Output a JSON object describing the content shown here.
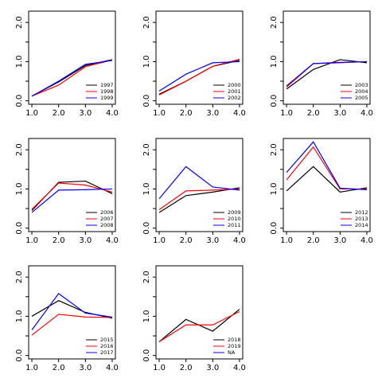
{
  "chart_data": [
    {
      "type": "line",
      "x": [
        1,
        2,
        3,
        4
      ],
      "xlim": [
        0.88,
        4.12
      ],
      "xticks": [
        {
          "value": 1,
          "label": "1.0"
        },
        {
          "value": 2,
          "label": "2.0"
        },
        {
          "value": 3,
          "label": "3.0"
        },
        {
          "value": 4,
          "label": "4.0"
        }
      ],
      "ylim": [
        -0.088,
        2.288
      ],
      "yticks": [
        {
          "value": 0,
          "label": "0.0"
        },
        0.5,
        {
          "value": 1,
          "label": "1.0"
        },
        1.5,
        {
          "value": 2,
          "label": "2.0"
        }
      ],
      "legend": "bottomright",
      "series": [
        {
          "name": "1997",
          "color": "#000000",
          "values": [
            0.12,
            0.48,
            0.9,
            1.05
          ]
        },
        {
          "name": "1998",
          "color": "#ff0000",
          "values": [
            0.12,
            0.4,
            0.87,
            1.04
          ]
        },
        {
          "name": "1999",
          "color": "#0000ff",
          "values": [
            0.12,
            0.5,
            0.93,
            1.03
          ]
        }
      ]
    },
    {
      "type": "line",
      "x": [
        1,
        2,
        3,
        4
      ],
      "xlim": [
        0.88,
        4.12
      ],
      "xticks": [
        {
          "value": 1,
          "label": "1.0"
        },
        {
          "value": 2,
          "label": "2.0"
        },
        {
          "value": 3,
          "label": "3.0"
        },
        {
          "value": 4,
          "label": "4.0"
        }
      ],
      "ylim": [
        -0.088,
        2.288
      ],
      "yticks": [
        {
          "value": 0,
          "label": "0.0"
        },
        0.5,
        {
          "value": 1,
          "label": "1.0"
        },
        1.5,
        {
          "value": 2,
          "label": "2.0"
        }
      ],
      "legend": "bottomright",
      "series": [
        {
          "name": "2000",
          "color": "#000000",
          "values": [
            0.17,
            0.5,
            0.88,
            1.03
          ]
        },
        {
          "name": "2001",
          "color": "#ff0000",
          "values": [
            0.15,
            0.5,
            0.88,
            1.06
          ]
        },
        {
          "name": "2002",
          "color": "#0000ff",
          "values": [
            0.25,
            0.68,
            0.97,
            1.0
          ]
        }
      ]
    },
    {
      "type": "line",
      "x": [
        1,
        2,
        3,
        4
      ],
      "xlim": [
        0.88,
        4.12
      ],
      "xticks": [
        {
          "value": 1,
          "label": "1.0"
        },
        {
          "value": 2,
          "label": "2.0"
        },
        {
          "value": 3,
          "label": "3.0"
        },
        {
          "value": 4,
          "label": "4.0"
        }
      ],
      "ylim": [
        -0.088,
        2.288
      ],
      "yticks": [
        {
          "value": 0,
          "label": "0.0"
        },
        0.5,
        {
          "value": 1,
          "label": "1.0"
        },
        1.5,
        {
          "value": 2,
          "label": "2.0"
        }
      ],
      "legend": "bottomright",
      "series": [
        {
          "name": "2003",
          "color": "#000000",
          "values": [
            0.3,
            0.8,
            1.05,
            0.97
          ]
        },
        {
          "name": "2004",
          "color": "#ff0000",
          "values": [
            0.35,
            0.95,
            0.97,
            1.0
          ]
        },
        {
          "name": "2005",
          "color": "#0000ff",
          "values": [
            0.38,
            0.95,
            0.98,
            1.0
          ]
        }
      ]
    },
    {
      "type": "line",
      "x": [
        1,
        2,
        3,
        4
      ],
      "xlim": [
        0.88,
        4.12
      ],
      "xticks": [
        {
          "value": 1,
          "label": "1.0"
        },
        {
          "value": 2,
          "label": "2.0"
        },
        {
          "value": 3,
          "label": "3.0"
        },
        {
          "value": 4,
          "label": "4.0"
        }
      ],
      "ylim": [
        -0.088,
        2.288
      ],
      "yticks": [
        {
          "value": 0,
          "label": "0.0"
        },
        0.5,
        {
          "value": 1,
          "label": "1.0"
        },
        1.5,
        {
          "value": 2,
          "label": "2.0"
        }
      ],
      "legend": "bottomright",
      "series": [
        {
          "name": "2006",
          "color": "#000000",
          "values": [
            0.45,
            1.17,
            1.2,
            0.88
          ]
        },
        {
          "name": "2007",
          "color": "#ff0000",
          "values": [
            0.48,
            1.15,
            1.1,
            0.92
          ]
        },
        {
          "name": "2008",
          "color": "#0000ff",
          "values": [
            0.4,
            0.97,
            0.98,
            1.0
          ]
        }
      ]
    },
    {
      "type": "line",
      "x": [
        1,
        2,
        3,
        4
      ],
      "xlim": [
        0.88,
        4.12
      ],
      "xticks": [
        {
          "value": 1,
          "label": "1.0"
        },
        {
          "value": 2,
          "label": "2.0"
        },
        {
          "value": 3,
          "label": "3.0"
        },
        {
          "value": 4,
          "label": "4.0"
        }
      ],
      "ylim": [
        -0.088,
        2.288
      ],
      "yticks": [
        {
          "value": 0,
          "label": "0.0"
        },
        0.5,
        {
          "value": 1,
          "label": "1.0"
        },
        1.5,
        {
          "value": 2,
          "label": "2.0"
        }
      ],
      "legend": "bottomright",
      "series": [
        {
          "name": "2009",
          "color": "#000000",
          "values": [
            0.4,
            0.83,
            0.92,
            1.03
          ]
        },
        {
          "name": "2010",
          "color": "#ff0000",
          "values": [
            0.47,
            0.95,
            0.97,
            1.0
          ]
        },
        {
          "name": "2011",
          "color": "#0000ff",
          "values": [
            0.75,
            1.57,
            1.05,
            0.97
          ]
        }
      ]
    },
    {
      "type": "line",
      "x": [
        1,
        2,
        3,
        4
      ],
      "xlim": [
        0.88,
        4.12
      ],
      "xticks": [
        {
          "value": 1,
          "label": "1.0"
        },
        {
          "value": 2,
          "label": "2.0"
        },
        {
          "value": 3,
          "label": "3.0"
        },
        {
          "value": 4,
          "label": "4.0"
        }
      ],
      "ylim": [
        -0.088,
        2.288
      ],
      "yticks": [
        {
          "value": 0,
          "label": "0.0"
        },
        0.5,
        {
          "value": 1,
          "label": "1.0"
        },
        1.5,
        {
          "value": 2,
          "label": "2.0"
        }
      ],
      "legend": "bottomright",
      "series": [
        {
          "name": "2012",
          "color": "#000000",
          "values": [
            0.95,
            1.57,
            0.92,
            1.03
          ]
        },
        {
          "name": "2013",
          "color": "#ff0000",
          "values": [
            1.23,
            2.07,
            1.0,
            1.0
          ]
        },
        {
          "name": "2014",
          "color": "#0000ff",
          "values": [
            1.42,
            2.2,
            1.02,
            0.98
          ]
        }
      ]
    },
    {
      "type": "line",
      "x": [
        1,
        2,
        3,
        4
      ],
      "xlim": [
        0.88,
        4.12
      ],
      "xticks": [
        {
          "value": 1,
          "label": "1.0"
        },
        {
          "value": 2,
          "label": "2.0"
        },
        {
          "value": 3,
          "label": "3.0"
        },
        {
          "value": 4,
          "label": "4.0"
        }
      ],
      "ylim": [
        -0.088,
        2.288
      ],
      "yticks": [
        {
          "value": 0,
          "label": "0.0"
        },
        0.5,
        {
          "value": 1,
          "label": "1.0"
        },
        1.5,
        {
          "value": 2,
          "label": "2.0"
        }
      ],
      "legend": "bottomright",
      "series": [
        {
          "name": "2015",
          "color": "#000000",
          "values": [
            1.0,
            1.4,
            1.1,
            0.95
          ]
        },
        {
          "name": "2016",
          "color": "#ff0000",
          "values": [
            0.52,
            1.05,
            0.98,
            0.97
          ]
        },
        {
          "name": "2017",
          "color": "#0000ff",
          "values": [
            0.65,
            1.58,
            1.08,
            0.98
          ]
        }
      ]
    },
    {
      "type": "line",
      "x": [
        1,
        2,
        3,
        4
      ],
      "xlim": [
        0.88,
        4.12
      ],
      "xticks": [
        {
          "value": 1,
          "label": "1.0"
        },
        {
          "value": 2,
          "label": "2.0"
        },
        {
          "value": 3,
          "label": "3.0"
        },
        {
          "value": 4,
          "label": "4.0"
        }
      ],
      "ylim": [
        -0.088,
        2.288
      ],
      "yticks": [
        {
          "value": 0,
          "label": "0.0"
        },
        0.5,
        {
          "value": 1,
          "label": "1.0"
        },
        1.5,
        {
          "value": 2,
          "label": "2.0"
        }
      ],
      "legend": "bottomright",
      "series": [
        {
          "name": "2018",
          "color": "#000000",
          "values": [
            0.35,
            0.92,
            0.62,
            1.18
          ]
        },
        {
          "name": "2019",
          "color": "#ff0000",
          "values": [
            0.35,
            0.78,
            0.78,
            1.12
          ]
        },
        {
          "name": "NA",
          "color": "#0000ff",
          "values": [
            null,
            null,
            null,
            null
          ]
        }
      ]
    }
  ]
}
